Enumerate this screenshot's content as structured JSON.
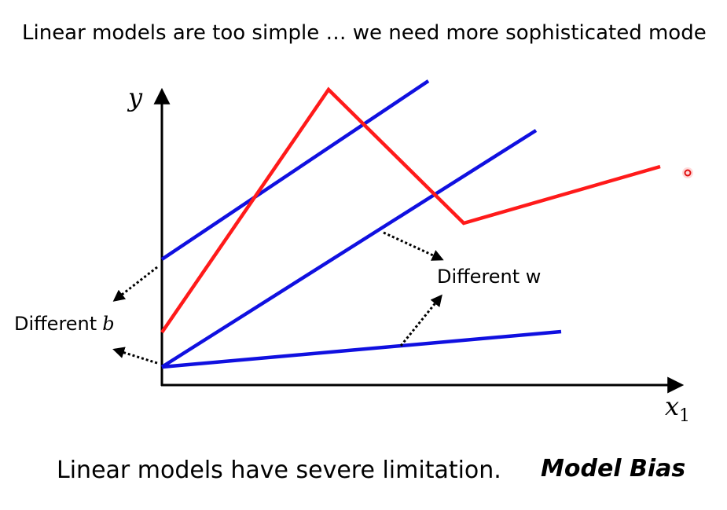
{
  "header": {
    "title": "Linear models are too simple … we need more sophisticated mode"
  },
  "axes": {
    "y_label": "y",
    "x_label": "x",
    "x_subscript": "1"
  },
  "annotations": {
    "different_b": {
      "text": "Different",
      "symbol": "b"
    },
    "different_w": "Different w"
  },
  "footer": {
    "text": "Linear models have severe limitation.",
    "emphasis": "Model Bias"
  }
}
